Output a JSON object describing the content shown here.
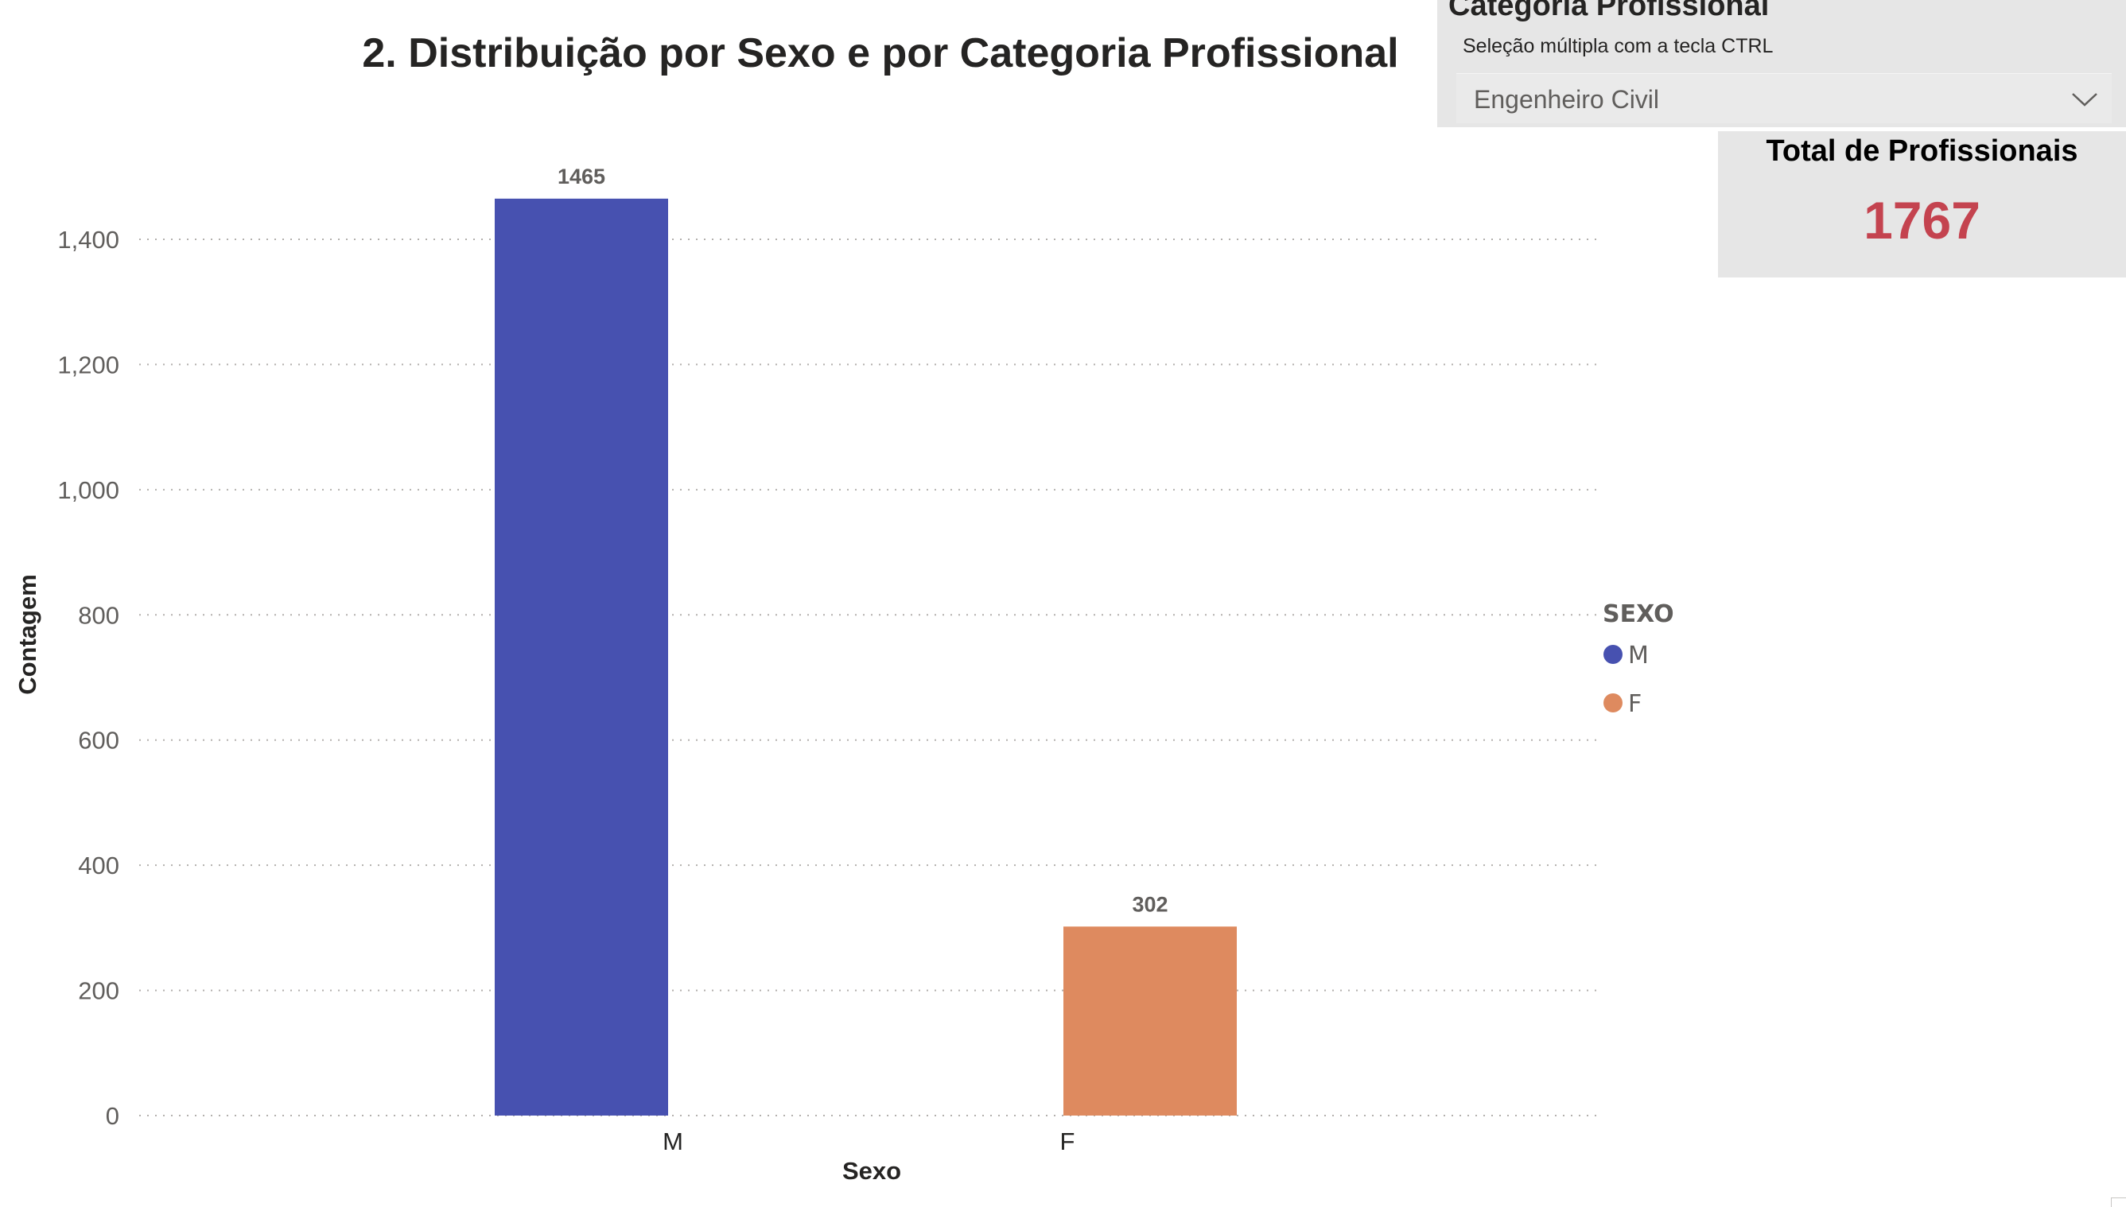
{
  "chart_data": {
    "type": "bar",
    "title": "2. Distribuição por Sexo e por Categoria Profissional",
    "xlabel": "Sexo",
    "ylabel": "Contagem",
    "categories": [
      "M",
      "F"
    ],
    "values": [
      1465,
      302
    ],
    "data_labels": [
      "1465",
      "302"
    ],
    "colors": [
      "#4751b0",
      "#de8a5f"
    ],
    "ylim": [
      0,
      1400
    ],
    "yticks": [
      0,
      200,
      400,
      600,
      800,
      1000,
      1200,
      1400
    ],
    "ytick_labels": [
      "0",
      "200",
      "400",
      "600",
      "800",
      "1,000",
      "1,200",
      "1,400"
    ],
    "grid": true,
    "legend": {
      "title": "SEXO",
      "placement": "right",
      "entries": [
        {
          "label": "M",
          "color": "#4751b0"
        },
        {
          "label": "F",
          "color": "#de8a5f"
        }
      ]
    }
  },
  "slicer": {
    "header": "Categoria Profissional",
    "subtitle": "Seleção múltipla com a tecla CTRL",
    "selected": "Engenheiro Civil",
    "icon": "chevron-down-icon"
  },
  "card": {
    "title": "Total de Profissionais",
    "value": "1767",
    "value_color": "#c4434f"
  }
}
